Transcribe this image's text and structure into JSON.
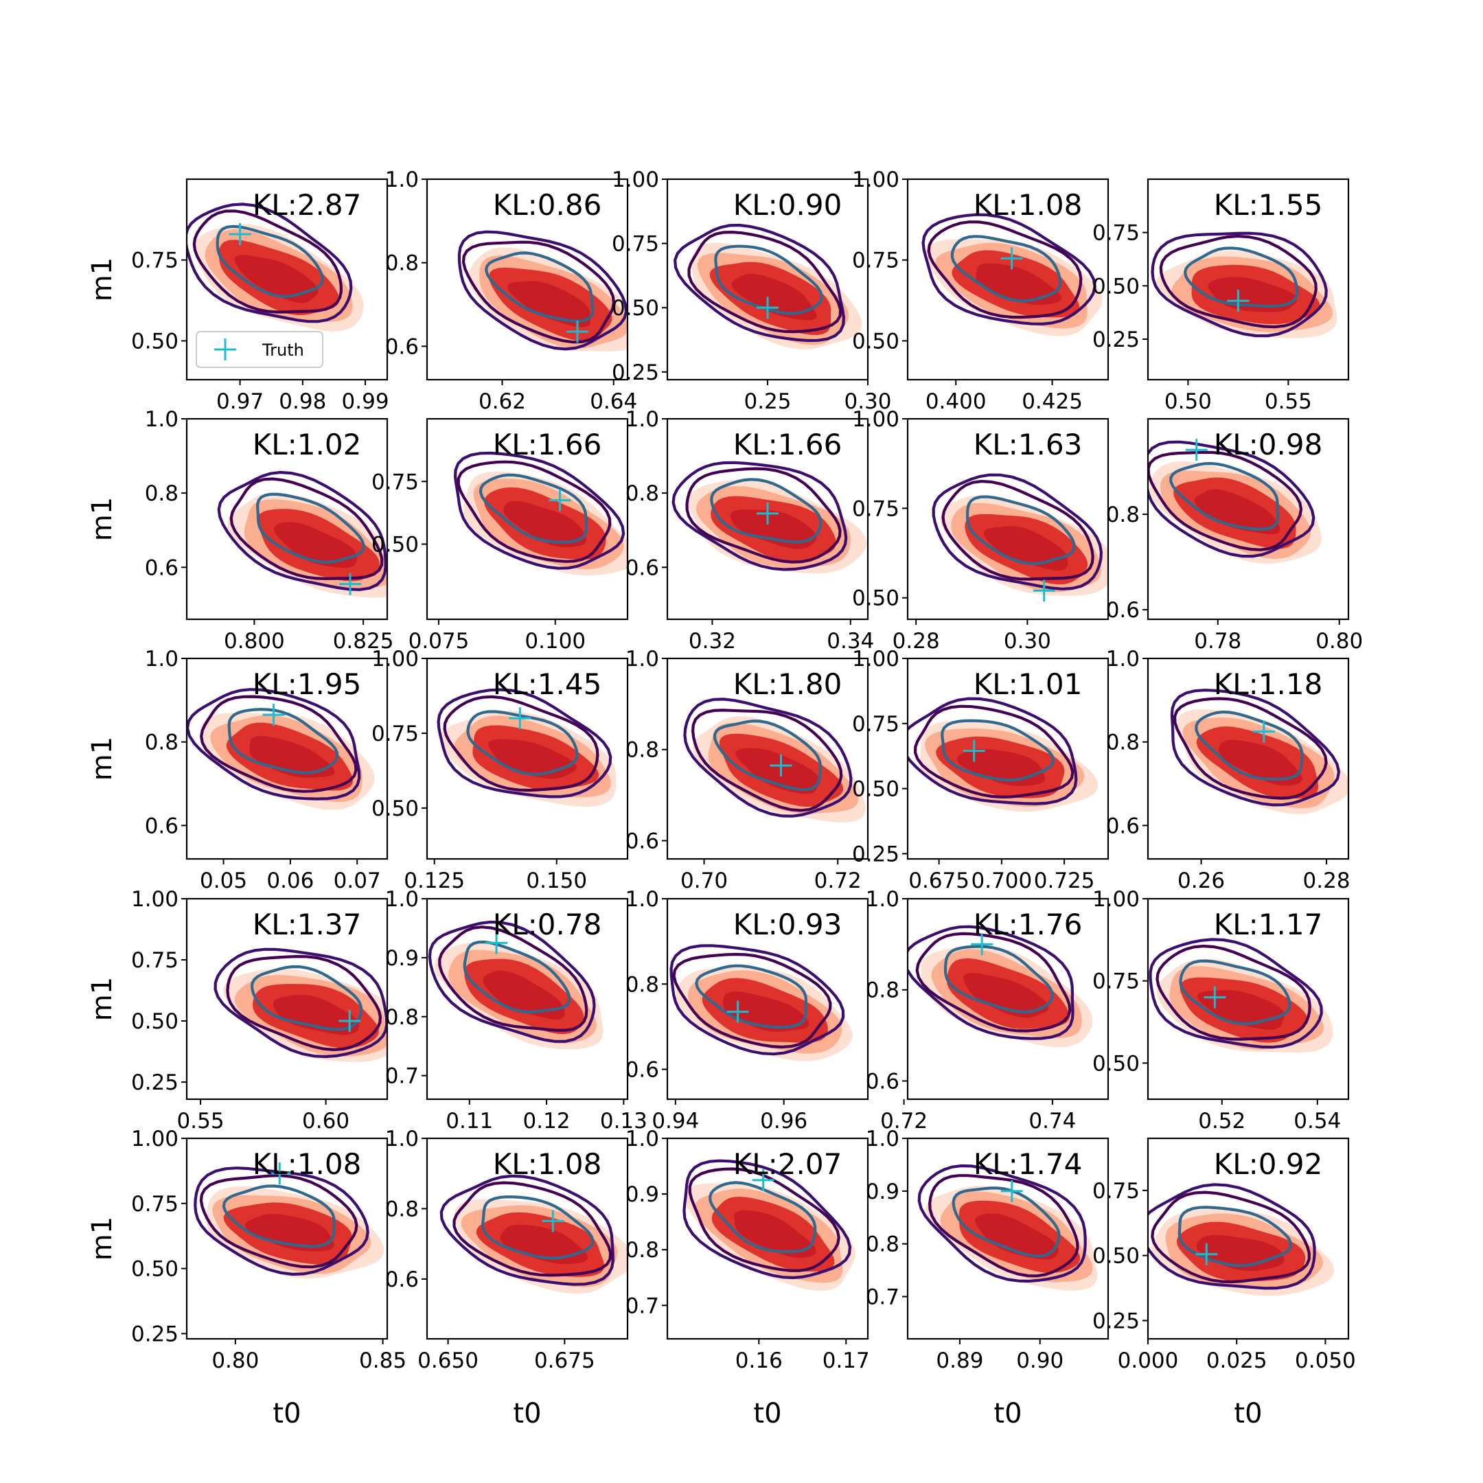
{
  "figure": {
    "row_ylabel": "m1",
    "col_xlabel": "t0",
    "legend_label": "Truth"
  },
  "colors": {
    "post_light": "#fde0d2",
    "post_mid": "#fcae91",
    "post_dark": "#e0322c",
    "post_core": "#c81d25",
    "contour_outer": "#3b0f6f",
    "contour_mid": "#440154",
    "contour_inner": "#31688e",
    "truth": "#17becf"
  },
  "chart_data": [
    {
      "r": 0,
      "c": 0,
      "type": "contour",
      "kl": "KL:2.87",
      "truth": [
        0.97,
        0.83
      ],
      "tilt": -0.85,
      "xlim": [
        0.9615,
        0.9935
      ],
      "ylim": [
        0.38,
        1.0
      ],
      "xticks": [
        0.97,
        0.98,
        0.99
      ],
      "xtick_labels": [
        "0.97",
        "0.98",
        "0.99"
      ],
      "yticks": [
        0.5,
        0.75
      ],
      "ytick_labels": [
        "0.50",
        "0.75"
      ],
      "legend": true
    },
    {
      "r": 0,
      "c": 1,
      "type": "contour",
      "kl": "KL:0.86",
      "truth": [
        0.6335,
        0.635
      ],
      "tilt": -0.8,
      "xlim": [
        0.6065,
        0.6425
      ],
      "ylim": [
        0.52,
        1.0
      ],
      "xticks": [
        0.62,
        0.64
      ],
      "xtick_labels": [
        "0.62",
        "0.64"
      ],
      "yticks": [
        0.6,
        0.8,
        1.0
      ],
      "ytick_labels": [
        "0.6",
        "0.8",
        "1.0"
      ]
    },
    {
      "r": 0,
      "c": 2,
      "type": "contour",
      "kl": "KL:0.90",
      "truth": [
        0.25,
        0.5
      ],
      "tilt": -0.8,
      "xlim": [
        0.2,
        0.3
      ],
      "ylim": [
        0.22,
        1.0
      ],
      "xticks": [
        0.25,
        0.3
      ],
      "xtick_labels": [
        "0.25",
        "0.30"
      ],
      "yticks": [
        0.25,
        0.5,
        0.75,
        1.0
      ],
      "ytick_labels": [
        "0.25",
        "0.50",
        "0.75",
        "1.00"
      ]
    },
    {
      "r": 0,
      "c": 3,
      "type": "contour",
      "kl": "KL:1.08",
      "truth": [
        0.4145,
        0.755
      ],
      "tilt": -0.6,
      "xlim": [
        0.3875,
        0.4395
      ],
      "ylim": [
        0.38,
        1.0
      ],
      "xticks": [
        0.4,
        0.425
      ],
      "xtick_labels": [
        "0.400",
        "0.425"
      ],
      "yticks": [
        0.5,
        0.75,
        1.0
      ],
      "ytick_labels": [
        "0.50",
        "0.75",
        "1.00"
      ]
    },
    {
      "r": 0,
      "c": 4,
      "type": "contour",
      "kl": "KL:1.55",
      "truth": [
        0.525,
        0.43
      ],
      "tilt": -0.3,
      "xlim": [
        0.48,
        0.58
      ],
      "ylim": [
        0.06,
        1.0
      ],
      "xticks": [
        0.5,
        0.55
      ],
      "xtick_labels": [
        "0.50",
        "0.55"
      ],
      "yticks": [
        0.25,
        0.5,
        0.75
      ],
      "ytick_labels": [
        "0.25",
        "0.50",
        "0.75"
      ]
    },
    {
      "r": 1,
      "c": 0,
      "type": "contour",
      "kl": "KL:1.02",
      "truth": [
        0.822,
        0.555
      ],
      "tilt": -0.8,
      "xlim": [
        0.7845,
        0.8305
      ],
      "ylim": [
        0.46,
        1.0
      ],
      "xticks": [
        0.8,
        0.825
      ],
      "xtick_labels": [
        "0.800",
        "0.825"
      ],
      "yticks": [
        0.6,
        0.8,
        1.0
      ],
      "ytick_labels": [
        "0.6",
        "0.8",
        "1.0"
      ]
    },
    {
      "r": 1,
      "c": 1,
      "type": "contour",
      "kl": "KL:1.66",
      "truth": [
        0.101,
        0.675
      ],
      "tilt": -0.8,
      "xlim": [
        0.0725,
        0.1155
      ],
      "ylim": [
        0.2,
        1.0
      ],
      "xticks": [
        0.075,
        0.1
      ],
      "xtick_labels": [
        "0.075",
        "0.100"
      ],
      "yticks": [
        0.5,
        0.75
      ],
      "ytick_labels": [
        "0.50",
        "0.75"
      ]
    },
    {
      "r": 1,
      "c": 2,
      "type": "contour",
      "kl": "KL:1.66",
      "truth": [
        0.328,
        0.745
      ],
      "tilt": -0.5,
      "xlim": [
        0.3135,
        0.3425
      ],
      "ylim": [
        0.46,
        1.0
      ],
      "xticks": [
        0.32,
        0.34
      ],
      "xtick_labels": [
        "0.32",
        "0.34"
      ],
      "yticks": [
        0.6,
        0.8,
        1.0
      ],
      "ytick_labels": [
        "0.6",
        "0.8",
        "1.0"
      ]
    },
    {
      "r": 1,
      "c": 3,
      "type": "contour",
      "kl": "KL:1.63",
      "truth": [
        0.303,
        0.52
      ],
      "tilt": -0.7,
      "xlim": [
        0.2785,
        0.3145
      ],
      "ylim": [
        0.44,
        1.0
      ],
      "xticks": [
        0.28,
        0.3
      ],
      "xtick_labels": [
        "0.28",
        "0.30"
      ],
      "yticks": [
        0.5,
        0.75,
        1.0
      ],
      "ytick_labels": [
        "0.50",
        "0.75",
        "1.00"
      ]
    },
    {
      "r": 1,
      "c": 4,
      "type": "contour",
      "kl": "KL:0.98",
      "truth": [
        0.7765,
        0.935
      ],
      "tilt": -0.7,
      "xlim": [
        0.7685,
        0.8015
      ],
      "ylim": [
        0.58,
        1.0
      ],
      "xticks": [
        0.78,
        0.8
      ],
      "xtick_labels": [
        "0.78",
        "0.80"
      ],
      "yticks": [
        0.6,
        0.8
      ],
      "ytick_labels": [
        "0.6",
        "0.8"
      ]
    },
    {
      "r": 2,
      "c": 0,
      "type": "contour",
      "kl": "KL:1.95",
      "truth": [
        0.0575,
        0.865
      ],
      "tilt": -0.6,
      "xlim": [
        0.0445,
        0.0745
      ],
      "ylim": [
        0.52,
        1.0
      ],
      "xticks": [
        0.05,
        0.06,
        0.07
      ],
      "xtick_labels": [
        "0.05",
        "0.06",
        "0.07"
      ],
      "yticks": [
        0.6,
        0.8,
        1.0
      ],
      "ytick_labels": [
        "0.6",
        "0.8",
        "1.0"
      ]
    },
    {
      "r": 2,
      "c": 1,
      "type": "contour",
      "kl": "KL:1.45",
      "truth": [
        0.1425,
        0.8
      ],
      "tilt": -0.5,
      "xlim": [
        0.1235,
        0.1645
      ],
      "ylim": [
        0.33,
        1.0
      ],
      "xticks": [
        0.125,
        0.15
      ],
      "xtick_labels": [
        "0.125",
        "0.150"
      ],
      "yticks": [
        0.5,
        0.75,
        1.0
      ],
      "ytick_labels": [
        "0.50",
        "0.75",
        "1.00"
      ]
    },
    {
      "r": 2,
      "c": 2,
      "type": "contour",
      "kl": "KL:1.80",
      "truth": [
        0.7115,
        0.765
      ],
      "tilt": -0.8,
      "xlim": [
        0.6945,
        0.7245
      ],
      "ylim": [
        0.56,
        1.0
      ],
      "xticks": [
        0.7,
        0.72
      ],
      "xtick_labels": [
        "0.70",
        "0.72"
      ],
      "yticks": [
        0.6,
        0.8,
        1.0
      ],
      "ytick_labels": [
        "0.6",
        "0.8",
        "1.0"
      ]
    },
    {
      "r": 2,
      "c": 3,
      "type": "contour",
      "kl": "KL:1.01",
      "truth": [
        0.689,
        0.645
      ],
      "tilt": -0.4,
      "xlim": [
        0.6625,
        0.7425
      ],
      "ylim": [
        0.23,
        1.0
      ],
      "xticks": [
        0.675,
        0.7,
        0.725
      ],
      "xtick_labels": [
        "0.675",
        "0.700",
        "0.725"
      ],
      "yticks": [
        0.25,
        0.5,
        0.75,
        1.0
      ],
      "ytick_labels": [
        "0.25",
        "0.50",
        "0.75",
        "1.00"
      ]
    },
    {
      "r": 2,
      "c": 4,
      "type": "contour",
      "kl": "KL:1.18",
      "truth": [
        0.27,
        0.825
      ],
      "tilt": -0.8,
      "xlim": [
        0.2515,
        0.2835
      ],
      "ylim": [
        0.52,
        1.0
      ],
      "xticks": [
        0.26,
        0.28
      ],
      "xtick_labels": [
        "0.26",
        "0.28"
      ],
      "yticks": [
        0.6,
        0.8,
        1.0
      ],
      "ytick_labels": [
        "0.6",
        "0.8",
        "1.0"
      ]
    },
    {
      "r": 3,
      "c": 0,
      "type": "contour",
      "kl": "KL:1.37",
      "truth": [
        0.6095,
        0.5
      ],
      "tilt": -0.5,
      "xlim": [
        0.5445,
        0.6245
      ],
      "ylim": [
        0.18,
        1.0
      ],
      "xticks": [
        0.55,
        0.6
      ],
      "xtick_labels": [
        "0.55",
        "0.60"
      ],
      "yticks": [
        0.25,
        0.5,
        0.75,
        1.0
      ],
      "ytick_labels": [
        "0.25",
        "0.50",
        "0.75",
        "1.00"
      ]
    },
    {
      "r": 3,
      "c": 1,
      "type": "contour",
      "kl": "KL:0.78",
      "truth": [
        0.1135,
        0.925
      ],
      "tilt": -0.9,
      "xlim": [
        0.1045,
        0.1305
      ],
      "ylim": [
        0.66,
        1.0
      ],
      "xticks": [
        0.11,
        0.12,
        0.13
      ],
      "xtick_labels": [
        "0.11",
        "0.12",
        "0.13"
      ],
      "yticks": [
        0.7,
        0.8,
        0.9,
        1.0
      ],
      "ytick_labels": [
        "0.7",
        "0.8",
        "0.9",
        "1.0"
      ]
    },
    {
      "r": 3,
      "c": 2,
      "type": "contour",
      "kl": "KL:0.93",
      "truth": [
        0.9515,
        0.735
      ],
      "tilt": -0.5,
      "xlim": [
        0.9385,
        0.9755
      ],
      "ylim": [
        0.53,
        1.0
      ],
      "xticks": [
        0.94,
        0.96
      ],
      "xtick_labels": [
        "0.94",
        "0.96"
      ],
      "yticks": [
        0.6,
        0.8,
        1.0
      ],
      "ytick_labels": [
        "0.6",
        "0.8",
        "1.0"
      ]
    },
    {
      "r": 3,
      "c": 3,
      "type": "contour",
      "kl": "KL:1.76",
      "truth": [
        0.7305,
        0.9
      ],
      "tilt": -0.7,
      "xlim": [
        0.7205,
        0.7475
      ],
      "ylim": [
        0.56,
        1.0
      ],
      "xticks": [
        0.72,
        0.74
      ],
      "xtick_labels": [
        "0.72",
        "0.74"
      ],
      "yticks": [
        0.6,
        0.8,
        1.0
      ],
      "ytick_labels": [
        "0.6",
        "0.8",
        "1.0"
      ]
    },
    {
      "r": 3,
      "c": 4,
      "type": "contour",
      "kl": "KL:1.17",
      "truth": [
        0.5185,
        0.7
      ],
      "tilt": -0.5,
      "xlim": [
        0.5045,
        0.5465
      ],
      "ylim": [
        0.39,
        1.0
      ],
      "xticks": [
        0.52,
        0.54
      ],
      "xtick_labels": [
        "0.52",
        "0.54"
      ],
      "yticks": [
        0.5,
        0.75,
        1.0
      ],
      "ytick_labels": [
        "0.50",
        "0.75",
        "1.00"
      ]
    },
    {
      "r": 4,
      "c": 0,
      "type": "contour",
      "kl": "KL:1.08",
      "truth": [
        0.815,
        0.865
      ],
      "tilt": -0.4,
      "xlim": [
        0.7835,
        0.8515
      ],
      "ylim": [
        0.23,
        1.0
      ],
      "xticks": [
        0.8,
        0.85
      ],
      "xtick_labels": [
        "0.80",
        "0.85"
      ],
      "yticks": [
        0.25,
        0.5,
        0.75,
        1.0
      ],
      "ytick_labels": [
        "0.25",
        "0.50",
        "0.75",
        "1.00"
      ]
    },
    {
      "r": 4,
      "c": 1,
      "type": "contour",
      "kl": "KL:1.08",
      "truth": [
        0.6725,
        0.765
      ],
      "tilt": -0.5,
      "xlim": [
        0.6455,
        0.6885
      ],
      "ylim": [
        0.43,
        1.0
      ],
      "xticks": [
        0.65,
        0.675
      ],
      "xtick_labels": [
        "0.650",
        "0.675"
      ],
      "yticks": [
        0.6,
        0.8,
        1.0
      ],
      "ytick_labels": [
        "0.6",
        "0.8",
        "1.0"
      ]
    },
    {
      "r": 4,
      "c": 2,
      "type": "contour",
      "kl": "KL:2.07",
      "truth": [
        0.1605,
        0.925
      ],
      "tilt": -0.9,
      "xlim": [
        0.1495,
        0.1725
      ],
      "ylim": [
        0.64,
        1.0
      ],
      "xticks": [
        0.16,
        0.17
      ],
      "xtick_labels": [
        "0.16",
        "0.17"
      ],
      "yticks": [
        0.7,
        0.8,
        0.9,
        1.0
      ],
      "ytick_labels": [
        "0.7",
        "0.8",
        "0.9",
        "1.0"
      ]
    },
    {
      "r": 4,
      "c": 3,
      "type": "contour",
      "kl": "KL:1.74",
      "truth": [
        0.8965,
        0.9
      ],
      "tilt": -0.8,
      "xlim": [
        0.8835,
        0.9085
      ],
      "ylim": [
        0.62,
        1.0
      ],
      "xticks": [
        0.89,
        0.9
      ],
      "xtick_labels": [
        "0.89",
        "0.90"
      ],
      "yticks": [
        0.7,
        0.8,
        0.9,
        1.0
      ],
      "ytick_labels": [
        "0.7",
        "0.8",
        "0.9",
        "1.0"
      ]
    },
    {
      "r": 4,
      "c": 4,
      "type": "contour",
      "kl": "KL:0.92",
      "truth": [
        0.0165,
        0.505
      ],
      "tilt": -0.3,
      "xlim": [
        0.0,
        0.0565
      ],
      "ylim": [
        0.18,
        0.95
      ],
      "xticks": [
        0.0,
        0.025,
        0.05
      ],
      "xtick_labels": [
        "0.000",
        "0.025",
        "0.050"
      ],
      "yticks": [
        0.25,
        0.5,
        0.75
      ],
      "ytick_labels": [
        "0.25",
        "0.50",
        "0.75"
      ]
    }
  ]
}
